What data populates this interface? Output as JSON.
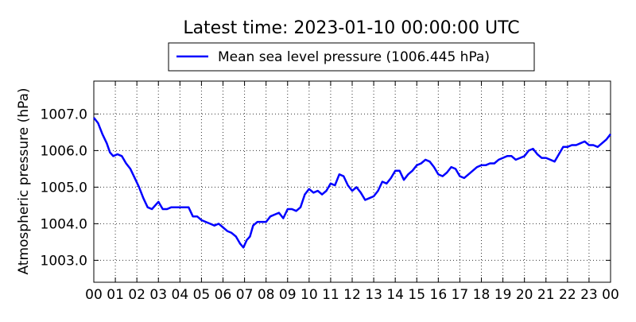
{
  "chart_data": {
    "type": "line",
    "title": "Latest time: 2023-01-10 00:00:00 UTC",
    "ylabel": "Atmospheric pressure (hPa)",
    "xlabel": "",
    "x_tick_labels": [
      "00",
      "01",
      "02",
      "03",
      "04",
      "05",
      "06",
      "07",
      "08",
      "09",
      "10",
      "11",
      "12",
      "13",
      "14",
      "15",
      "16",
      "17",
      "18",
      "19",
      "20",
      "21",
      "22",
      "23",
      "00"
    ],
    "y_tick_labels": [
      "1003.0",
      "1004.0",
      "1005.0",
      "1006.0",
      "1007.0"
    ],
    "y_ticks": [
      1003.0,
      1004.0,
      1005.0,
      1006.0,
      1007.0
    ],
    "xlim": [
      0,
      24
    ],
    "ylim": [
      1002.4,
      1007.9
    ],
    "grid": true,
    "legend_placement": "top-center",
    "series": [
      {
        "name": "Mean sea level pressure (1006.445 hPa)",
        "color": "#0000ff",
        "x": [
          0,
          0.2,
          0.4,
          0.6,
          0.75,
          0.9,
          1.1,
          1.3,
          1.5,
          1.7,
          1.9,
          2.1,
          2.3,
          2.5,
          2.7,
          2.85,
          3.0,
          3.2,
          3.4,
          3.6,
          3.8,
          4.0,
          4.2,
          4.4,
          4.6,
          4.8,
          5.0,
          5.2,
          5.4,
          5.6,
          5.8,
          6.0,
          6.2,
          6.4,
          6.6,
          6.8,
          6.95,
          7.1,
          7.25,
          7.4,
          7.6,
          7.8,
          8.0,
          8.2,
          8.4,
          8.6,
          8.8,
          9.0,
          9.2,
          9.4,
          9.6,
          9.8,
          10.0,
          10.2,
          10.4,
          10.6,
          10.8,
          11.0,
          11.2,
          11.4,
          11.6,
          11.8,
          12.0,
          12.2,
          12.4,
          12.6,
          12.8,
          13.0,
          13.2,
          13.4,
          13.6,
          13.8,
          14.0,
          14.2,
          14.4,
          14.6,
          14.8,
          15.0,
          15.2,
          15.4,
          15.6,
          15.8,
          16.0,
          16.2,
          16.4,
          16.6,
          16.8,
          17.0,
          17.2,
          17.4,
          17.6,
          17.8,
          18.0,
          18.2,
          18.4,
          18.6,
          18.8,
          19.0,
          19.2,
          19.4,
          19.6,
          19.8,
          20.0,
          20.2,
          20.4,
          20.6,
          20.8,
          21.0,
          21.2,
          21.4,
          21.6,
          21.8,
          22.0,
          22.2,
          22.4,
          22.6,
          22.8,
          23.0,
          23.2,
          23.4,
          23.6,
          23.8,
          24.0
        ],
        "y": [
          1006.9,
          1006.75,
          1006.45,
          1006.2,
          1005.95,
          1005.85,
          1005.9,
          1005.85,
          1005.65,
          1005.5,
          1005.25,
          1005.0,
          1004.7,
          1004.45,
          1004.4,
          1004.5,
          1004.6,
          1004.4,
          1004.4,
          1004.45,
          1004.45,
          1004.45,
          1004.45,
          1004.45,
          1004.2,
          1004.2,
          1004.1,
          1004.05,
          1004.0,
          1003.95,
          1004.0,
          1003.9,
          1003.8,
          1003.75,
          1003.65,
          1003.45,
          1003.35,
          1003.55,
          1003.65,
          1003.95,
          1004.05,
          1004.05,
          1004.05,
          1004.2,
          1004.25,
          1004.3,
          1004.15,
          1004.4,
          1004.4,
          1004.35,
          1004.45,
          1004.8,
          1004.95,
          1004.85,
          1004.9,
          1004.8,
          1004.9,
          1005.1,
          1005.05,
          1005.35,
          1005.3,
          1005.05,
          1004.9,
          1005.0,
          1004.85,
          1004.65,
          1004.7,
          1004.75,
          1004.9,
          1005.15,
          1005.1,
          1005.25,
          1005.45,
          1005.45,
          1005.2,
          1005.35,
          1005.45,
          1005.6,
          1005.65,
          1005.75,
          1005.7,
          1005.55,
          1005.35,
          1005.3,
          1005.4,
          1005.55,
          1005.5,
          1005.3,
          1005.25,
          1005.35,
          1005.45,
          1005.55,
          1005.6,
          1005.6,
          1005.65,
          1005.65,
          1005.75,
          1005.8,
          1005.85,
          1005.85,
          1005.75,
          1005.8,
          1005.85,
          1006.0,
          1006.05,
          1005.9,
          1005.8,
          1005.8,
          1005.75,
          1005.7,
          1005.9,
          1006.1,
          1006.1,
          1006.15,
          1006.15,
          1006.2,
          1006.25,
          1006.15,
          1006.15,
          1006.1,
          1006.2,
          1006.3,
          1006.45
        ]
      }
    ]
  }
}
